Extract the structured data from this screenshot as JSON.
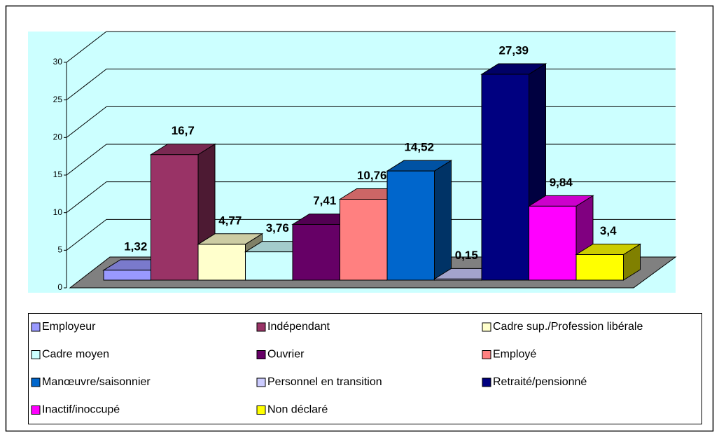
{
  "chart_data": {
    "type": "bar3d",
    "categories": [
      "Employeur",
      "Indépendant",
      "Cadre sup./Profession libérale",
      "Cadre moyen",
      "Ouvrier",
      "Employé",
      "Manœuvre/saisonnier",
      "Personnel en transition",
      "Retraité/pensionné",
      "Inactif/inoccupé",
      "Non déclaré"
    ],
    "values": [
      1.32,
      16.7,
      4.77,
      3.76,
      7.41,
      10.76,
      14.52,
      0.15,
      27.39,
      9.84,
      3.4
    ],
    "value_labels": [
      "1,32",
      "16,7",
      "4,77",
      "3,76",
      "7,41",
      "10,76",
      "14,52",
      "0,15",
      "27,39",
      "9,84",
      "3,4"
    ],
    "colors": [
      "#9999ff",
      "#993366",
      "#ffffcc",
      "#ccffff",
      "#660066",
      "#ff8080",
      "#0066cc",
      "#ccccff",
      "#000080",
      "#ff00ff",
      "#ffff00"
    ],
    "ylim": [
      0,
      30
    ],
    "yticks": [
      0,
      5,
      10,
      15,
      20,
      25,
      30
    ],
    "grid": true,
    "legend": "bottom"
  }
}
